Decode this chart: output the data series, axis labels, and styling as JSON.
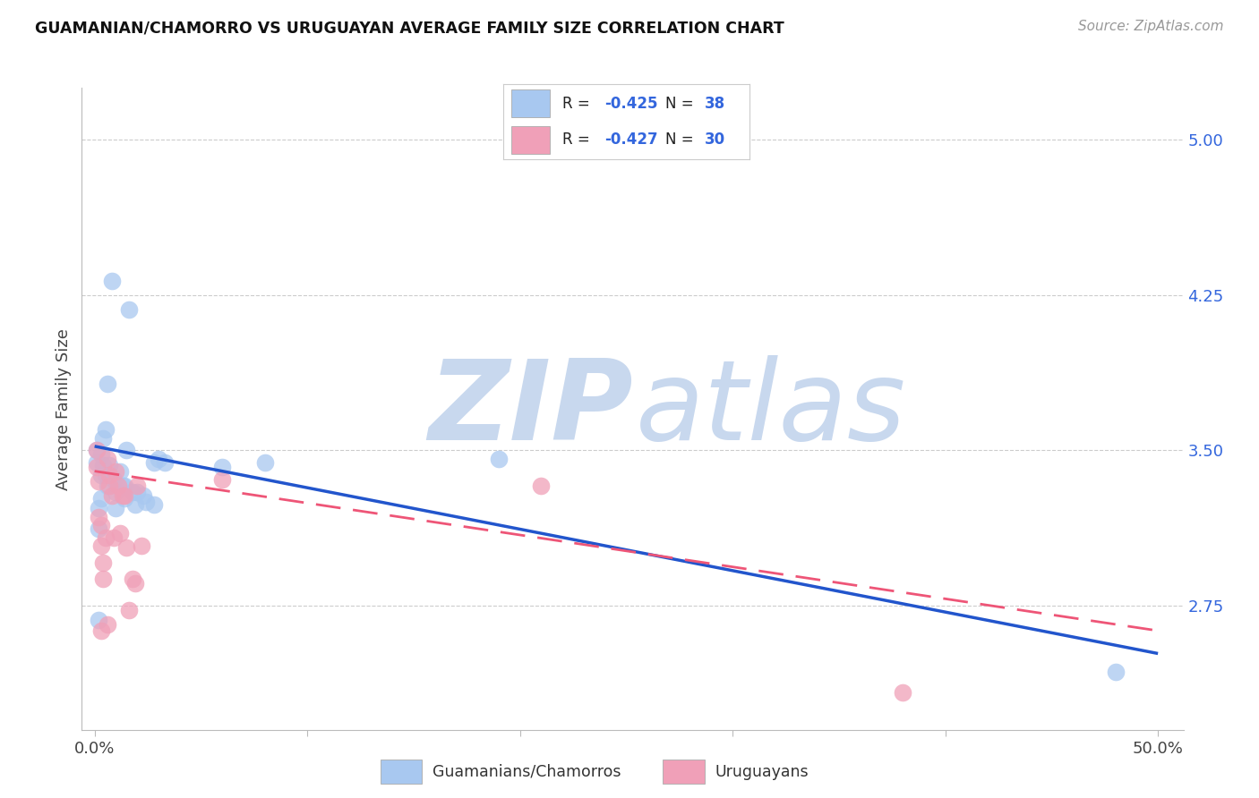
{
  "title": "GUAMANIAN/CHAMORRO VS URUGUAYAN AVERAGE FAMILY SIZE CORRELATION CHART",
  "source": "Source: ZipAtlas.com",
  "ylabel": "Average Family Size",
  "ylim": [
    2.15,
    5.25
  ],
  "xlim": [
    -0.006,
    0.512
  ],
  "yticks": [
    2.75,
    3.5,
    4.25,
    5.0
  ],
  "background_color": "#ffffff",
  "grid_color": "#cccccc",
  "blue_color": "#a8c8f0",
  "pink_color": "#f0a0b8",
  "blue_line_color": "#2255cc",
  "pink_line_color": "#ee5577",
  "title_color": "#111111",
  "right_tick_color": "#3366dd",
  "blue_scatter": [
    [
      0.001,
      3.5
    ],
    [
      0.001,
      3.44
    ],
    [
      0.002,
      3.22
    ],
    [
      0.002,
      3.12
    ],
    [
      0.003,
      3.48
    ],
    [
      0.003,
      3.38
    ],
    [
      0.003,
      3.27
    ],
    [
      0.004,
      3.43
    ],
    [
      0.004,
      3.56
    ],
    [
      0.005,
      3.38
    ],
    [
      0.005,
      3.6
    ],
    [
      0.006,
      3.82
    ],
    [
      0.006,
      3.33
    ],
    [
      0.007,
      3.43
    ],
    [
      0.008,
      4.32
    ],
    [
      0.009,
      3.36
    ],
    [
      0.01,
      3.3
    ],
    [
      0.01,
      3.22
    ],
    [
      0.012,
      3.4
    ],
    [
      0.013,
      3.33
    ],
    [
      0.014,
      3.33
    ],
    [
      0.014,
      3.27
    ],
    [
      0.015,
      3.5
    ],
    [
      0.016,
      4.18
    ],
    [
      0.018,
      3.3
    ],
    [
      0.019,
      3.24
    ],
    [
      0.02,
      3.3
    ],
    [
      0.023,
      3.28
    ],
    [
      0.024,
      3.25
    ],
    [
      0.028,
      3.44
    ],
    [
      0.028,
      3.24
    ],
    [
      0.03,
      3.46
    ],
    [
      0.033,
      3.44
    ],
    [
      0.06,
      3.42
    ],
    [
      0.08,
      3.44
    ],
    [
      0.19,
      3.46
    ],
    [
      0.48,
      2.43
    ],
    [
      0.002,
      2.68
    ]
  ],
  "pink_scatter": [
    [
      0.001,
      3.5
    ],
    [
      0.001,
      3.42
    ],
    [
      0.002,
      3.35
    ],
    [
      0.002,
      3.18
    ],
    [
      0.003,
      3.14
    ],
    [
      0.003,
      3.04
    ],
    [
      0.004,
      2.96
    ],
    [
      0.004,
      2.88
    ],
    [
      0.005,
      3.08
    ],
    [
      0.006,
      3.46
    ],
    [
      0.007,
      3.38
    ],
    [
      0.007,
      3.33
    ],
    [
      0.008,
      3.28
    ],
    [
      0.009,
      3.08
    ],
    [
      0.01,
      3.4
    ],
    [
      0.011,
      3.33
    ],
    [
      0.012,
      3.1
    ],
    [
      0.013,
      3.28
    ],
    [
      0.014,
      3.28
    ],
    [
      0.015,
      3.03
    ],
    [
      0.016,
      2.73
    ],
    [
      0.018,
      2.88
    ],
    [
      0.019,
      2.86
    ],
    [
      0.02,
      3.33
    ],
    [
      0.022,
      3.04
    ],
    [
      0.06,
      3.36
    ],
    [
      0.21,
      3.33
    ],
    [
      0.38,
      2.33
    ],
    [
      0.003,
      2.63
    ],
    [
      0.006,
      2.66
    ]
  ],
  "blue_line": [
    [
      0.0,
      3.52
    ],
    [
      0.5,
      2.52
    ]
  ],
  "pink_line": [
    [
      0.0,
      3.4
    ],
    [
      0.5,
      2.63
    ]
  ]
}
